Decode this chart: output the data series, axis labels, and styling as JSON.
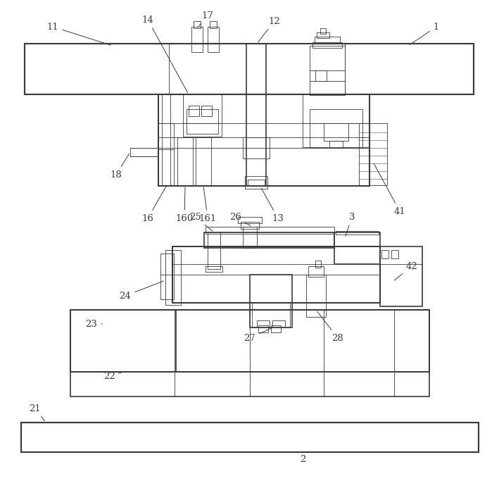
{
  "bg_color": "#ffffff",
  "lc": "#3a3a3a",
  "lw": 1.2,
  "tlw": 0.6,
  "fig_w": 7.09,
  "fig_h": 6.83,
  "dpi": 100
}
